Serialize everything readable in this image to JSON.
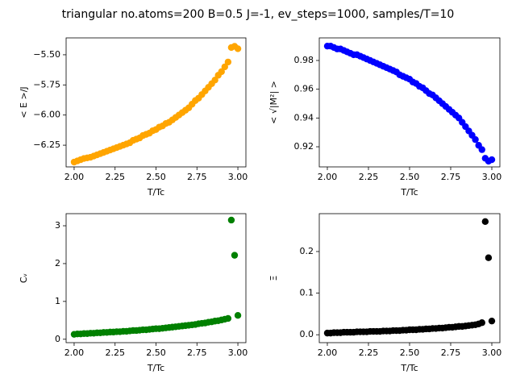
{
  "title": "triangular no.atoms=200  B=0.5 J=-1, ev_steps=1000, samples/T=10",
  "chart_data": [
    {
      "type": "scatter",
      "xlabel": "T/Tc",
      "ylabel": "< E >/J",
      "color": "#ffa500",
      "x": [
        2.0,
        2.02,
        2.04,
        2.06,
        2.08,
        2.1,
        2.12,
        2.14,
        2.16,
        2.18,
        2.2,
        2.22,
        2.24,
        2.26,
        2.28,
        2.3,
        2.32,
        2.34,
        2.36,
        2.38,
        2.4,
        2.42,
        2.44,
        2.46,
        2.48,
        2.5,
        2.52,
        2.54,
        2.56,
        2.58,
        2.6,
        2.62,
        2.64,
        2.66,
        2.68,
        2.7,
        2.72,
        2.74,
        2.76,
        2.78,
        2.8,
        2.82,
        2.84,
        2.86,
        2.88,
        2.9,
        2.92,
        2.94,
        2.96,
        2.98,
        3.0
      ],
      "values": [
        -6.39,
        -6.38,
        -6.37,
        -6.36,
        -6.355,
        -6.35,
        -6.34,
        -6.33,
        -6.32,
        -6.31,
        -6.3,
        -6.29,
        -6.28,
        -6.27,
        -6.26,
        -6.25,
        -6.24,
        -6.23,
        -6.21,
        -6.2,
        -6.19,
        -6.17,
        -6.16,
        -6.15,
        -6.13,
        -6.12,
        -6.1,
        -6.09,
        -6.07,
        -6.06,
        -6.04,
        -6.02,
        -6.0,
        -5.98,
        -5.96,
        -5.94,
        -5.91,
        -5.88,
        -5.86,
        -5.83,
        -5.8,
        -5.77,
        -5.74,
        -5.71,
        -5.67,
        -5.64,
        -5.6,
        -5.56,
        -5.44,
        -5.43,
        -5.45
      ],
      "xlim": [
        1.951,
        3.049
      ],
      "ylim": [
        -6.43,
        -5.36
      ],
      "xticks": [
        {
          "value": 2.0,
          "label": "2.00"
        },
        {
          "value": 2.25,
          "label": "2.25"
        },
        {
          "value": 2.5,
          "label": "2.50"
        },
        {
          "value": 2.75,
          "label": "2.75"
        },
        {
          "value": 3.0,
          "label": "3.00"
        }
      ],
      "yticks": [
        {
          "value": -6.25,
          "label": "−6.25"
        },
        {
          "value": -6.0,
          "label": "−6.00"
        },
        {
          "value": -5.75,
          "label": "−5.75"
        },
        {
          "value": -5.5,
          "label": "−5.50"
        }
      ]
    },
    {
      "type": "scatter",
      "xlabel": "T/Tc",
      "ylabel": "< √|M²| >",
      "color": "#0000ff",
      "x": [
        2.0,
        2.02,
        2.04,
        2.06,
        2.08,
        2.1,
        2.12,
        2.14,
        2.16,
        2.18,
        2.2,
        2.22,
        2.24,
        2.26,
        2.28,
        2.3,
        2.32,
        2.34,
        2.36,
        2.38,
        2.4,
        2.42,
        2.44,
        2.46,
        2.48,
        2.5,
        2.52,
        2.54,
        2.56,
        2.58,
        2.6,
        2.62,
        2.64,
        2.66,
        2.68,
        2.7,
        2.72,
        2.74,
        2.76,
        2.78,
        2.8,
        2.82,
        2.84,
        2.86,
        2.88,
        2.9,
        2.92,
        2.94,
        2.96,
        2.98,
        3.0
      ],
      "values": [
        0.99,
        0.99,
        0.989,
        0.988,
        0.988,
        0.987,
        0.986,
        0.985,
        0.984,
        0.984,
        0.983,
        0.982,
        0.981,
        0.98,
        0.979,
        0.978,
        0.977,
        0.976,
        0.975,
        0.974,
        0.973,
        0.972,
        0.97,
        0.969,
        0.968,
        0.967,
        0.965,
        0.964,
        0.962,
        0.961,
        0.959,
        0.957,
        0.956,
        0.954,
        0.952,
        0.95,
        0.948,
        0.946,
        0.944,
        0.942,
        0.94,
        0.937,
        0.934,
        0.931,
        0.928,
        0.925,
        0.921,
        0.918,
        0.912,
        0.91,
        0.911
      ],
      "xlim": [
        1.951,
        3.049
      ],
      "ylim": [
        0.906,
        0.9957
      ],
      "xticks": [
        {
          "value": 2.0,
          "label": "2.00"
        },
        {
          "value": 2.25,
          "label": "2.25"
        },
        {
          "value": 2.5,
          "label": "2.50"
        },
        {
          "value": 2.75,
          "label": "2.75"
        },
        {
          "value": 3.0,
          "label": "3.00"
        }
      ],
      "yticks": [
        0.92,
        0.94,
        0.96,
        0.98
      ]
    },
    {
      "type": "scatter",
      "xlabel": "T/Tc",
      "ylabel": "Cᵥ",
      "color": "#008000",
      "x": [
        2.0,
        2.02,
        2.04,
        2.06,
        2.08,
        2.1,
        2.12,
        2.14,
        2.16,
        2.18,
        2.2,
        2.22,
        2.24,
        2.26,
        2.28,
        2.3,
        2.32,
        2.34,
        2.36,
        2.38,
        2.4,
        2.42,
        2.44,
        2.46,
        2.48,
        2.5,
        2.52,
        2.54,
        2.56,
        2.58,
        2.6,
        2.62,
        2.64,
        2.66,
        2.68,
        2.7,
        2.72,
        2.74,
        2.76,
        2.78,
        2.8,
        2.82,
        2.84,
        2.86,
        2.88,
        2.9,
        2.92,
        2.94,
        2.96,
        2.98,
        3.0
      ],
      "values": [
        0.13,
        0.14,
        0.14,
        0.15,
        0.15,
        0.16,
        0.16,
        0.17,
        0.17,
        0.18,
        0.18,
        0.19,
        0.19,
        0.2,
        0.2,
        0.21,
        0.21,
        0.22,
        0.23,
        0.23,
        0.24,
        0.25,
        0.25,
        0.26,
        0.27,
        0.28,
        0.28,
        0.29,
        0.3,
        0.31,
        0.32,
        0.33,
        0.34,
        0.35,
        0.36,
        0.37,
        0.38,
        0.39,
        0.41,
        0.42,
        0.43,
        0.45,
        0.46,
        0.48,
        0.49,
        0.51,
        0.53,
        0.55,
        3.15,
        2.22,
        0.63
      ],
      "xlim": [
        1.951,
        3.049
      ],
      "ylim": [
        -0.09,
        3.32
      ],
      "xticks": [
        {
          "value": 2.0,
          "label": "2.00"
        },
        {
          "value": 2.25,
          "label": "2.25"
        },
        {
          "value": 2.5,
          "label": "2.50"
        },
        {
          "value": 2.75,
          "label": "2.75"
        },
        {
          "value": 3.0,
          "label": "3.00"
        }
      ],
      "yticks": [
        0,
        1,
        2,
        3
      ]
    },
    {
      "type": "scatter",
      "xlabel": "T/Tc",
      "ylabel": "Ξ",
      "color": "#000000",
      "x": [
        2.0,
        2.02,
        2.04,
        2.06,
        2.08,
        2.1,
        2.12,
        2.14,
        2.16,
        2.18,
        2.2,
        2.22,
        2.24,
        2.26,
        2.28,
        2.3,
        2.32,
        2.34,
        2.36,
        2.38,
        2.4,
        2.42,
        2.44,
        2.46,
        2.48,
        2.5,
        2.52,
        2.54,
        2.56,
        2.58,
        2.6,
        2.62,
        2.64,
        2.66,
        2.68,
        2.7,
        2.72,
        2.74,
        2.76,
        2.78,
        2.8,
        2.82,
        2.84,
        2.86,
        2.88,
        2.9,
        2.92,
        2.94,
        2.96,
        2.98,
        3.0
      ],
      "values": [
        0.004,
        0.004,
        0.005,
        0.005,
        0.005,
        0.006,
        0.006,
        0.006,
        0.006,
        0.007,
        0.007,
        0.007,
        0.007,
        0.008,
        0.008,
        0.008,
        0.008,
        0.009,
        0.009,
        0.009,
        0.01,
        0.01,
        0.01,
        0.011,
        0.011,
        0.012,
        0.012,
        0.012,
        0.013,
        0.013,
        0.014,
        0.014,
        0.015,
        0.015,
        0.016,
        0.016,
        0.017,
        0.018,
        0.018,
        0.019,
        0.02,
        0.02,
        0.021,
        0.022,
        0.023,
        0.024,
        0.026,
        0.029,
        0.272,
        0.185,
        0.033
      ],
      "xlim": [
        1.951,
        3.049
      ],
      "ylim": [
        -0.019,
        0.291
      ],
      "xticks": [
        {
          "value": 2.0,
          "label": "2.00"
        },
        {
          "value": 2.25,
          "label": "2.25"
        },
        {
          "value": 2.5,
          "label": "2.50"
        },
        {
          "value": 2.75,
          "label": "2.75"
        },
        {
          "value": 3.0,
          "label": "3.00"
        }
      ],
      "yticks": [
        {
          "value": 0.0,
          "label": "0.0"
        },
        {
          "value": 0.1,
          "label": "0.1"
        },
        {
          "value": 0.2,
          "label": "0.2"
        }
      ]
    }
  ]
}
